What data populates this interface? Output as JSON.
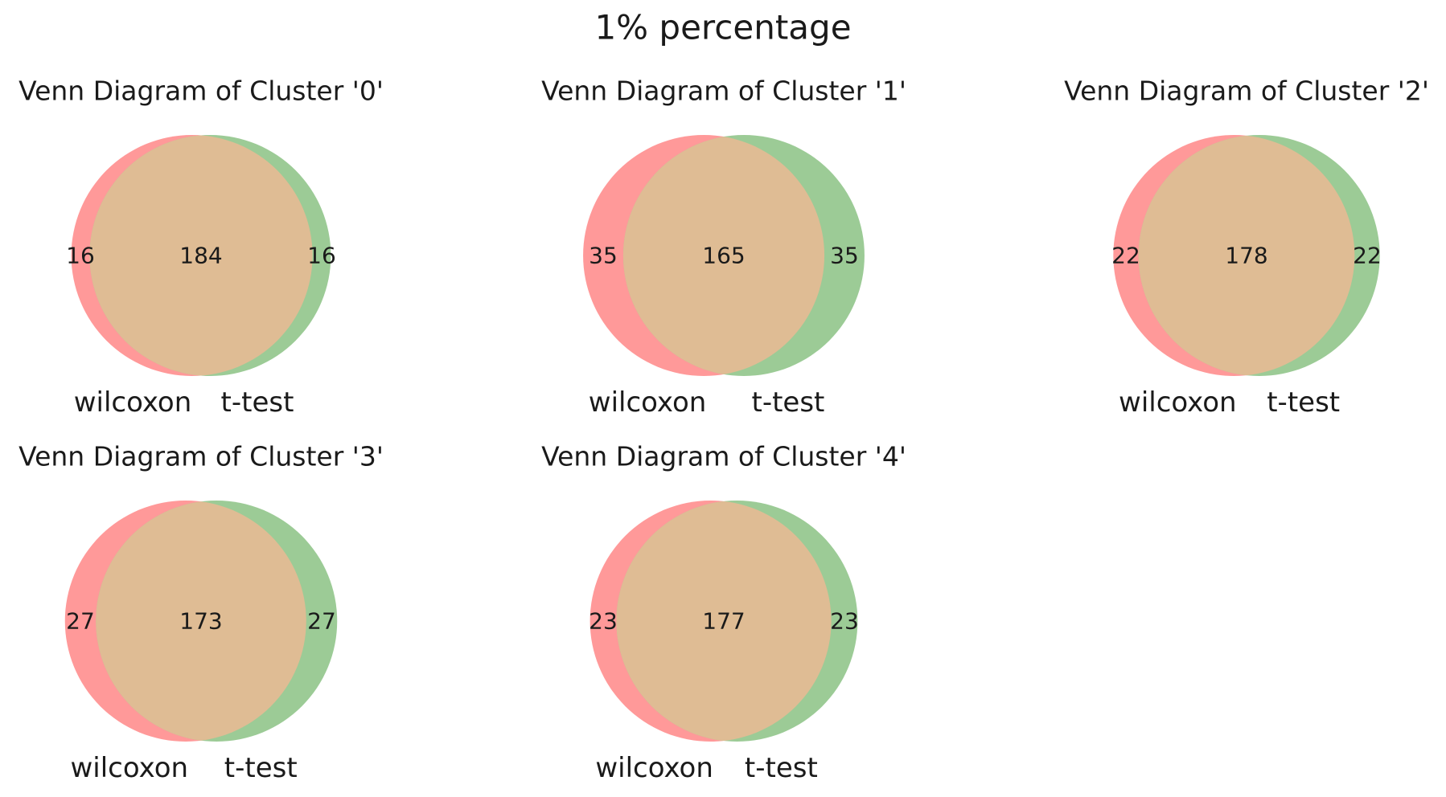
{
  "figure": {
    "title": "1% percentage"
  },
  "colors": {
    "set_a": "#ff9999",
    "set_b": "#9ccb96",
    "overlap": "#dfbc94"
  },
  "panels": [
    {
      "title": "Venn Diagram of Cluster '0'",
      "set_labels": [
        "wilcoxon",
        "t-test"
      ],
      "only_a": "16",
      "both": "184",
      "only_b": "16"
    },
    {
      "title": "Venn Diagram of Cluster '1'",
      "set_labels": [
        "wilcoxon",
        "t-test"
      ],
      "only_a": "35",
      "both": "165",
      "only_b": "35"
    },
    {
      "title": "Venn Diagram of Cluster '2'",
      "set_labels": [
        "wilcoxon",
        "t-test"
      ],
      "only_a": "22",
      "both": "178",
      "only_b": "22"
    },
    {
      "title": "Venn Diagram of Cluster '3'",
      "set_labels": [
        "wilcoxon",
        "t-test"
      ],
      "only_a": "27",
      "both": "173",
      "only_b": "27"
    },
    {
      "title": "Venn Diagram of Cluster '4'",
      "set_labels": [
        "wilcoxon",
        "t-test"
      ],
      "only_a": "23",
      "both": "177",
      "only_b": "23"
    }
  ]
}
